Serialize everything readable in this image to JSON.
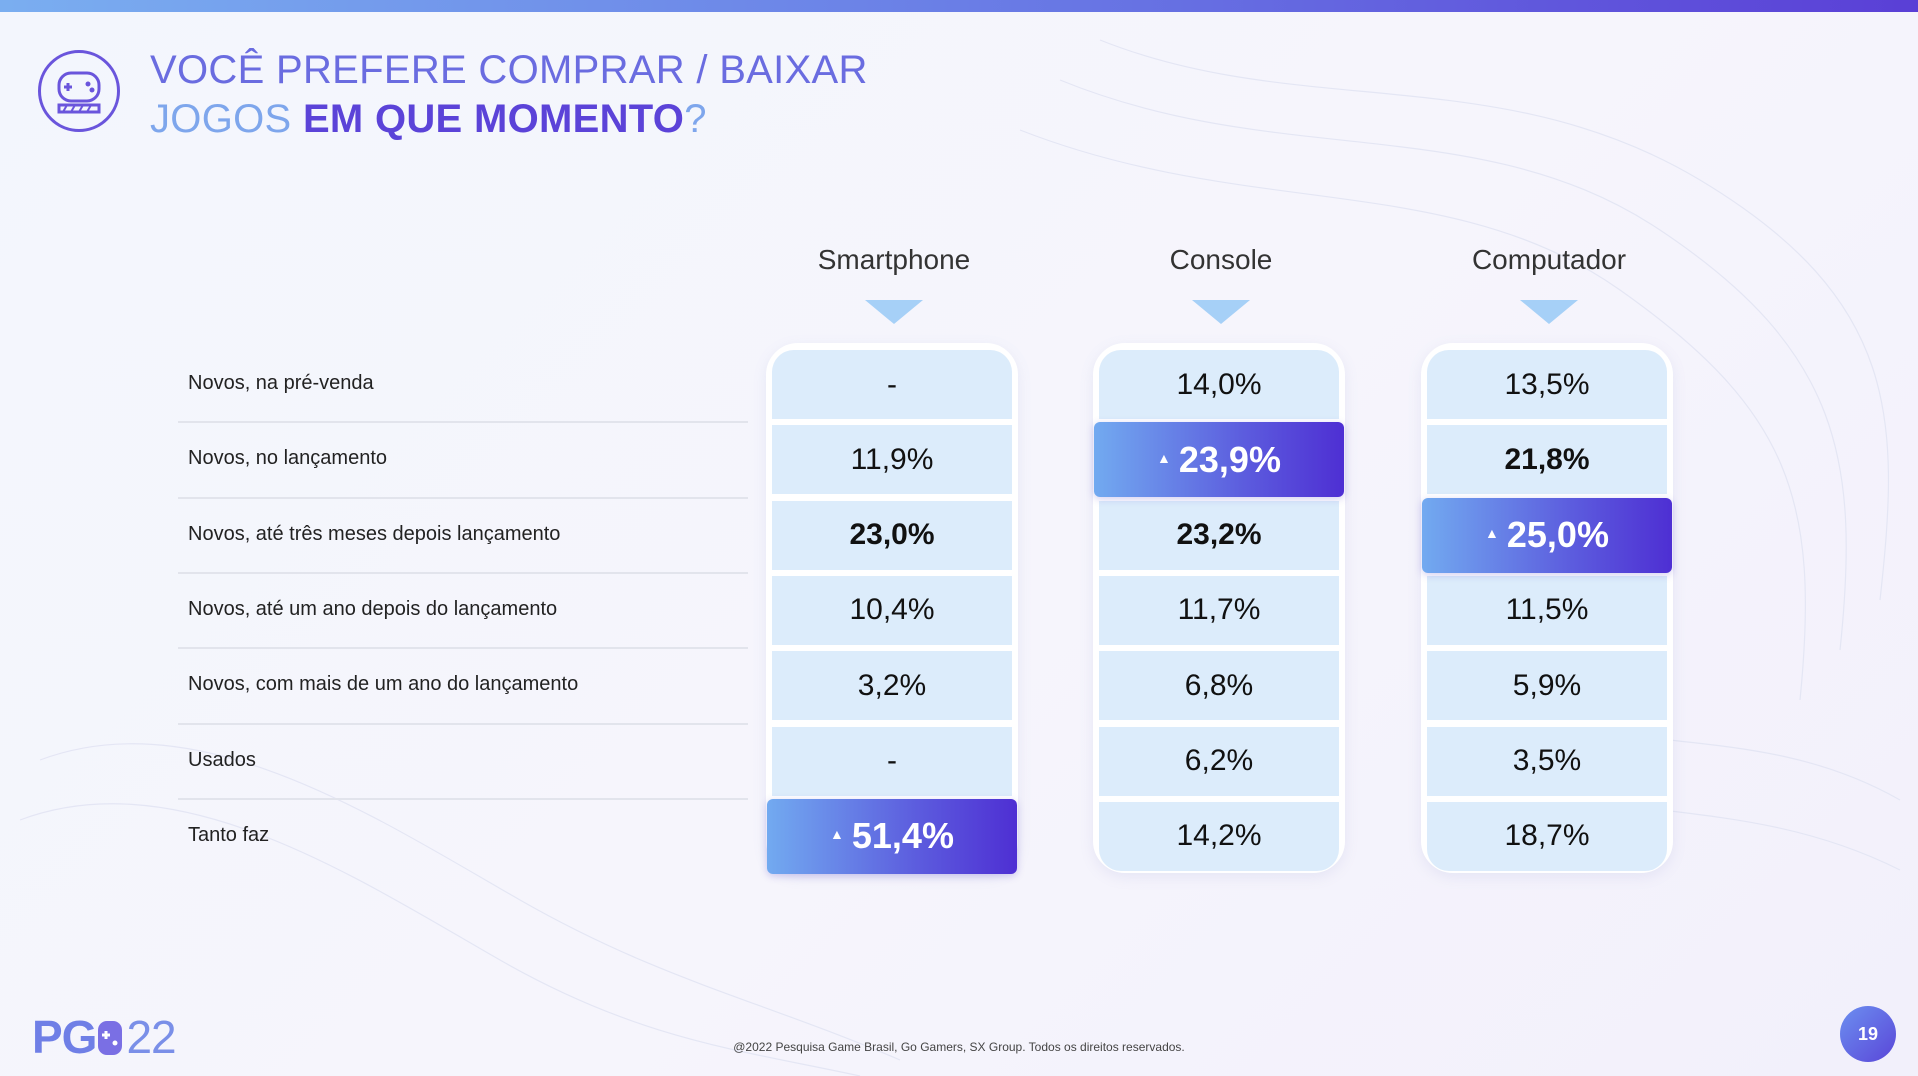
{
  "title": {
    "line1": "VOCÊ PREFERE COMPRAR / BAIXAR",
    "line2_a": "JOGOS ",
    "line2_b": "EM QUE MOMENTO",
    "line2_c": "?"
  },
  "chart_data": {
    "type": "table",
    "columns": [
      "Smartphone",
      "Console",
      "Computador"
    ],
    "rows": [
      "Novos, na pré-venda",
      "Novos, no lançamento",
      "Novos, até três meses depois lançamento",
      "Novos, até um ano depois do lançamento",
      "Novos, com mais de um ano do lançamento",
      "Usados",
      "Tanto faz"
    ],
    "values": {
      "Smartphone": [
        "-",
        "11,9%",
        "23,0%",
        "10,4%",
        "3,2%",
        "-",
        "51,4%"
      ],
      "Console": [
        "14,0%",
        "23,9%",
        "23,2%",
        "11,7%",
        "6,8%",
        "6,2%",
        "14,2%"
      ],
      "Computador": [
        "13,5%",
        "21,8%",
        "25,0%",
        "11,5%",
        "5,9%",
        "3,5%",
        "18,7%"
      ]
    },
    "highlight": {
      "Smartphone": 6,
      "Console": 1,
      "Computador": 2
    },
    "bold": {
      "Smartphone": [
        2
      ],
      "Console": [
        2
      ],
      "Computador": [
        1
      ]
    }
  },
  "colors": {
    "accent_purple": "#5b43d8",
    "accent_light_blue": "#7ea6ec",
    "cell_background": "#dcecfb"
  },
  "icons": {
    "header_icon": "gamepad-icon",
    "highlight_marker": "triangle-up-icon"
  },
  "footer": {
    "copyright": "@2022 Pesquisa Game Brasil, Go Gamers, SX Group. Todos os direitos reservados.",
    "logo_letters": "PG",
    "logo_year": "22",
    "page_number": "19"
  }
}
